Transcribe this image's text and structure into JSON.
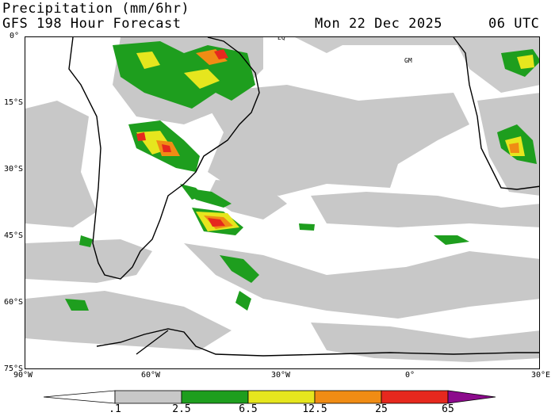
{
  "header": {
    "variable": "Precipitation (mm/6hr)",
    "model": "GFS 198 Hour Forecast",
    "date": "Mon 22 Dec 2025",
    "time": "06 UTC"
  },
  "map": {
    "lat_labels": [
      "0°",
      "15°S",
      "30°S",
      "45°S",
      "60°S",
      "75°S"
    ],
    "lon_labels": [
      "90°W",
      "60°W",
      "30°W",
      "0°",
      "30°E"
    ],
    "place_labels": [
      "EQ",
      "GM"
    ],
    "extent": {
      "lon_min": -90,
      "lon_max": 30,
      "lat_min": -75,
      "lat_max": 0
    }
  },
  "colorbar": {
    "labels": [
      ".1",
      "2.5",
      "6.5",
      "12.5",
      "25",
      "65"
    ],
    "colors": [
      "#ffffff",
      "#c8c8c8",
      "#1e9e1e",
      "#e6e61e",
      "#f08c14",
      "#e6281e",
      "#8c0a8c"
    ]
  }
}
